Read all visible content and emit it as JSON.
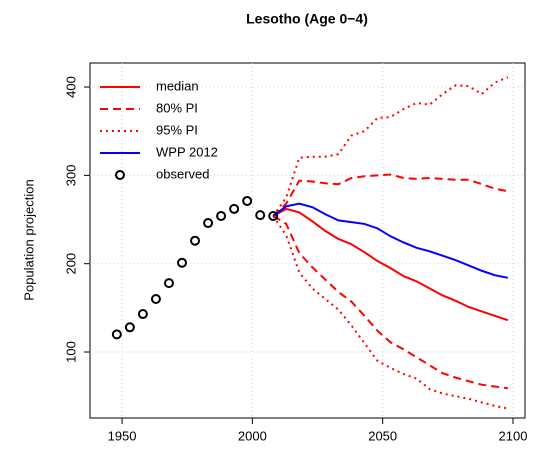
{
  "chart_data": {
    "type": "line",
    "title": "Lesotho (Age 0−4)",
    "y_label": "Population projection",
    "xlim": [
      1937.7,
      2104.6
    ],
    "ylim": [
      25.3,
      427.2
    ],
    "xticks": [
      1950,
      2000,
      2050,
      2100
    ],
    "yticks": [
      100,
      200,
      300,
      400
    ],
    "grid": true,
    "legend": "top-left",
    "series": [
      {
        "name": "median",
        "color": "#ff0000",
        "linestyle": "solid",
        "x": [
          2008,
          2013,
          2018,
          2023,
          2028,
          2033,
          2038,
          2043,
          2048,
          2053,
          2058,
          2063,
          2068,
          2073,
          2078,
          2083,
          2088,
          2093,
          2098
        ],
        "values": [
          254,
          262,
          258,
          248,
          237,
          228,
          222,
          213,
          203,
          195,
          186,
          180,
          172,
          164,
          158,
          151,
          146,
          141,
          136
        ]
      },
      {
        "name": "80% PI",
        "color": "#ff0000",
        "linestyle": "dashed",
        "x": [
          2008,
          2013,
          2018,
          2023,
          2028,
          2033,
          2038,
          2043,
          2048,
          2053,
          2058,
          2063,
          2068,
          2073,
          2078,
          2083,
          2088,
          2093,
          2098
        ],
        "values": [
          254,
          268,
          294,
          293,
          291,
          290,
          297,
          299,
          300,
          301,
          297,
          296,
          297,
          296,
          295,
          295,
          290,
          285,
          282
        ],
        "lower": [
          254,
          245,
          212,
          196,
          182,
          168,
          157,
          141,
          124,
          111,
          103,
          94,
          85,
          76,
          71,
          67,
          63,
          61,
          59
        ]
      },
      {
        "name": "95% PI",
        "color": "#ff0000",
        "linestyle": "dotted",
        "x": [
          2008,
          2013,
          2018,
          2023,
          2028,
          2033,
          2038,
          2043,
          2048,
          2053,
          2058,
          2063,
          2068,
          2073,
          2078,
          2083,
          2088,
          2093,
          2098
        ],
        "values": [
          254,
          275,
          320,
          321,
          321,
          324,
          345,
          350,
          365,
          366,
          375,
          382,
          380,
          392,
          402,
          401,
          392,
          405,
          411
        ],
        "lower": [
          254,
          232,
          190,
          172,
          160,
          148,
          130,
          110,
          90,
          82,
          75,
          70,
          58,
          53,
          50,
          47,
          43,
          39,
          36
        ]
      },
      {
        "name": "WPP 2012",
        "color": "#0000ff",
        "linestyle": "solid",
        "x": [
          2008,
          2013,
          2018,
          2023,
          2028,
          2033,
          2038,
          2043,
          2048,
          2053,
          2058,
          2063,
          2068,
          2073,
          2078,
          2083,
          2088,
          2093,
          2098
        ],
        "values": [
          254,
          265,
          268,
          264,
          256,
          249,
          247,
          245,
          240,
          231,
          224,
          218,
          214,
          209,
          204,
          198,
          192,
          187,
          184
        ]
      },
      {
        "name": "observed",
        "color": "#000000",
        "marker": "circle",
        "x": [
          1948,
          1953,
          1958,
          1963,
          1968,
          1973,
          1978,
          1983,
          1988,
          1993,
          1998,
          2003,
          2008
        ],
        "values": [
          120,
          128,
          143,
          160,
          178,
          201,
          226,
          246,
          254,
          262,
          271,
          255,
          254
        ]
      }
    ]
  }
}
